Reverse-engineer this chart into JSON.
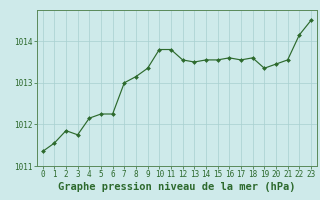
{
  "x": [
    0,
    1,
    2,
    3,
    4,
    5,
    6,
    7,
    8,
    9,
    10,
    11,
    12,
    13,
    14,
    15,
    16,
    17,
    18,
    19,
    20,
    21,
    22,
    23
  ],
  "y": [
    1011.35,
    1011.55,
    1011.85,
    1011.75,
    1012.15,
    1012.25,
    1012.25,
    1013.0,
    1013.15,
    1013.35,
    1013.8,
    1013.8,
    1013.55,
    1013.5,
    1013.55,
    1013.55,
    1013.6,
    1013.55,
    1013.6,
    1013.35,
    1013.45,
    1013.55,
    1014.15,
    1014.5
  ],
  "ylim": [
    1011.0,
    1014.75
  ],
  "yticks": [
    1011,
    1012,
    1013,
    1014
  ],
  "xticks": [
    0,
    1,
    2,
    3,
    4,
    5,
    6,
    7,
    8,
    9,
    10,
    11,
    12,
    13,
    14,
    15,
    16,
    17,
    18,
    19,
    20,
    21,
    22,
    23
  ],
  "line_color": "#2d6a2d",
  "marker_color": "#2d6a2d",
  "bg_color": "#ceeaea",
  "grid_color": "#a8d0d0",
  "xlabel": "Graphe pression niveau de la mer (hPa)",
  "xlabel_color": "#2d6a2d",
  "tick_color": "#2d6a2d",
  "spine_color": "#5a8a5a",
  "tick_fontsize": 5.5,
  "xlabel_fontsize": 7.5
}
